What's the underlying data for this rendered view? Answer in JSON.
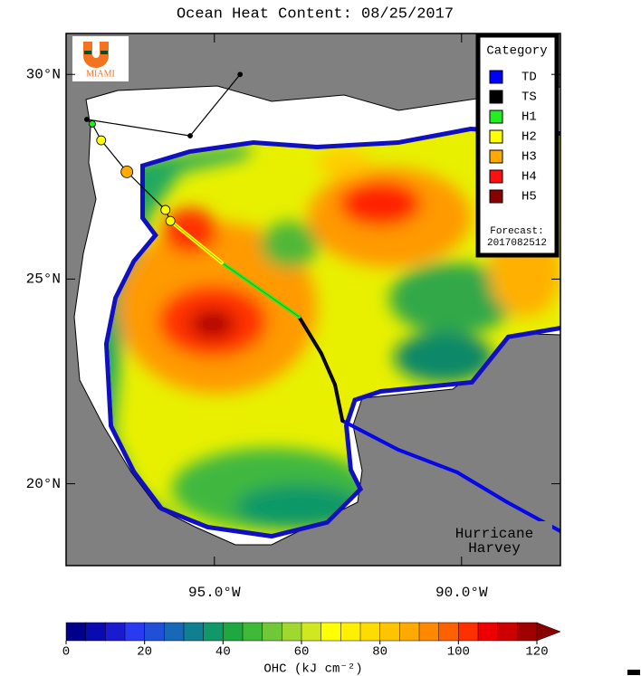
{
  "map": {
    "title": "Ocean Heat Content: 08/25/2017",
    "logo_text": "MIAMI",
    "xlim": [
      -98,
      -88
    ],
    "ylim": [
      18,
      31
    ],
    "xticks": [
      {
        "value": -95,
        "label": "95.0°W"
      },
      {
        "value": -90,
        "label": "90.0°W"
      }
    ],
    "yticks": [
      {
        "value": 30,
        "label": "30°N"
      },
      {
        "value": 25,
        "label": "25°N"
      },
      {
        "value": 20,
        "label": "20°N"
      }
    ],
    "legend": {
      "title": "Category",
      "items": [
        {
          "name": "TD",
          "color": "#0000ff"
        },
        {
          "name": "TS",
          "color": "#000000"
        },
        {
          "name": "H1",
          "color": "#22ee22"
        },
        {
          "name": "H2",
          "color": "#ffff00"
        },
        {
          "name": "H3",
          "color": "#ffaa00"
        },
        {
          "name": "H4",
          "color": "#ff1010"
        },
        {
          "name": "H5",
          "color": "#880000"
        }
      ],
      "forecast_label": "Forecast:",
      "forecast_time": "2017082512"
    },
    "track": {
      "lon": [
        -88.0,
        -89.08,
        -90.09,
        -91.28,
        -92.41,
        -92.56,
        -92.84,
        -93.29,
        -94.85,
        -95.89
      ],
      "lat": [
        18.84,
        19.55,
        20.28,
        20.83,
        21.54,
        22.42,
        23.19,
        24.08,
        25.4,
        26.42
      ],
      "category": [
        0,
        0,
        0,
        0,
        0,
        1,
        1,
        1,
        2,
        3
      ]
    },
    "forecast": {
      "lon": [
        -95.89,
        -95.99,
        -96.77,
        -97.29,
        -97.47,
        -97.58,
        -95.49,
        -94.48
      ],
      "lat": [
        26.42,
        26.69,
        27.62,
        28.39,
        28.79,
        28.9,
        28.5,
        30.0
      ],
      "category": [
        3,
        3,
        4,
        3,
        2,
        1,
        1,
        1
      ]
    },
    "annotation": [
      "Hurricane",
      "Harvey"
    ],
    "colorbar": {
      "lim": [
        0,
        120
      ],
      "ticks": [
        0,
        20,
        40,
        60,
        80,
        100,
        120
      ],
      "label": "OHC (kJ cm⁻²)",
      "colors": [
        "#00008b",
        "#0a0ab0",
        "#1a1ad0",
        "#2a3af0",
        "#2050d8",
        "#1868b8",
        "#108090",
        "#109868",
        "#20a840",
        "#40b838",
        "#70c838",
        "#a0d830",
        "#d0e820",
        "#ffff00",
        "#ffef00",
        "#ffdc00",
        "#ffc400",
        "#ffaa00",
        "#ff8800",
        "#ff6000",
        "#ff3000",
        "#ee0000",
        "#cc0000",
        "#a00000"
      ],
      "extend_color": "#880000"
    }
  }
}
